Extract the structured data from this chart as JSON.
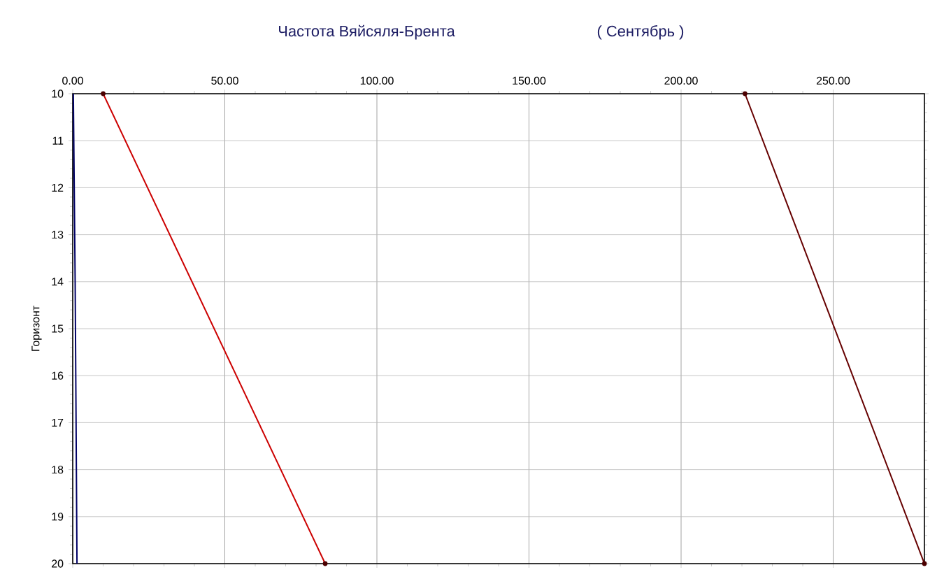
{
  "chart_data": {
    "type": "line",
    "title": "Частота Вяйсяля-Брента",
    "subtitle": "( Сентябрь )",
    "ylabel": "Горизонт",
    "xlim": [
      0,
      280
    ],
    "ylim": [
      20,
      10
    ],
    "xticks": [
      {
        "value": 0,
        "label": "0.00"
      },
      {
        "value": 50,
        "label": "50.00"
      },
      {
        "value": 100,
        "label": "100.00"
      },
      {
        "value": 150,
        "label": "150.00"
      },
      {
        "value": 200,
        "label": "200.00"
      },
      {
        "value": 250,
        "label": "250.00"
      }
    ],
    "yticks": [
      10,
      11,
      12,
      13,
      14,
      15,
      16,
      17,
      18,
      19,
      20
    ],
    "grid": true,
    "series": [
      {
        "color": "#000066",
        "x": [
          0.2,
          0.5,
          0.8,
          1.0,
          1.2,
          1.4
        ],
        "values": [
          10,
          12,
          14,
          16,
          18,
          20
        ],
        "marker": "none"
      },
      {
        "color": "#cc0000",
        "x": [
          10,
          83
        ],
        "values": [
          10,
          20
        ],
        "marker": "circle"
      },
      {
        "color": "#660000",
        "x": [
          221,
          280
        ],
        "values": [
          10,
          20
        ],
        "marker": "circle"
      }
    ]
  }
}
